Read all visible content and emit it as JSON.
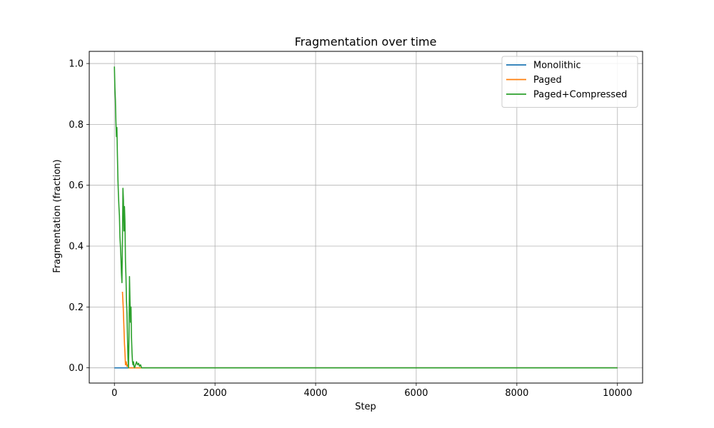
{
  "chart_data": {
    "type": "line",
    "title": "Fragmentation over time",
    "xlabel": "Step",
    "ylabel": "Fragmentation (fraction)",
    "xlim": [
      -500,
      10500
    ],
    "ylim": [
      -0.05,
      1.04
    ],
    "xticks": [
      0,
      2000,
      4000,
      6000,
      8000,
      10000
    ],
    "yticks": [
      0.0,
      0.2,
      0.4,
      0.6,
      0.8,
      1.0
    ],
    "xtick_labels": [
      "0",
      "2000",
      "4000",
      "6000",
      "8000",
      "10000"
    ],
    "ytick_labels": [
      "0.0",
      "0.2",
      "0.4",
      "0.6",
      "0.8",
      "1.0"
    ],
    "grid": true,
    "legend_position": "top-right",
    "series": [
      {
        "name": "Monolithic",
        "color": "#1f77b4",
        "x": [
          0,
          10000
        ],
        "y": [
          0.0,
          0.0
        ]
      },
      {
        "name": "Paged",
        "color": "#ff7f0e",
        "x": [
          160,
          175,
          190,
          200,
          210,
          220,
          235,
          250,
          265,
          280,
          300,
          10000
        ],
        "y": [
          0.25,
          0.2,
          0.13,
          0.08,
          0.05,
          0.01,
          0.02,
          0.005,
          0.01,
          0.0,
          0.0,
          0.0
        ]
      },
      {
        "name": "Paged+Compressed",
        "color": "#2ca02c",
        "x": [
          0,
          10,
          20,
          30,
          40,
          50,
          60,
          70,
          80,
          90,
          100,
          110,
          120,
          130,
          140,
          150,
          160,
          170,
          180,
          190,
          200,
          210,
          220,
          230,
          240,
          250,
          260,
          270,
          280,
          290,
          300,
          310,
          320,
          330,
          340,
          350,
          360,
          370,
          380,
          390,
          400,
          420,
          440,
          460,
          480,
          500,
          520,
          540,
          560,
          10000
        ],
        "y": [
          0.99,
          0.92,
          0.88,
          0.81,
          0.76,
          0.79,
          0.7,
          0.62,
          0.57,
          0.53,
          0.5,
          0.43,
          0.4,
          0.36,
          0.31,
          0.28,
          0.42,
          0.59,
          0.55,
          0.45,
          0.53,
          0.48,
          0.35,
          0.3,
          0.22,
          0.18,
          0.1,
          0.03,
          0.0,
          0.1,
          0.3,
          0.22,
          0.15,
          0.2,
          0.1,
          0.05,
          0.02,
          0.01,
          0.02,
          0.005,
          0.0,
          0.01,
          0.02,
          0.01,
          0.015,
          0.005,
          0.01,
          0.0,
          0.0,
          0.0
        ]
      }
    ]
  }
}
